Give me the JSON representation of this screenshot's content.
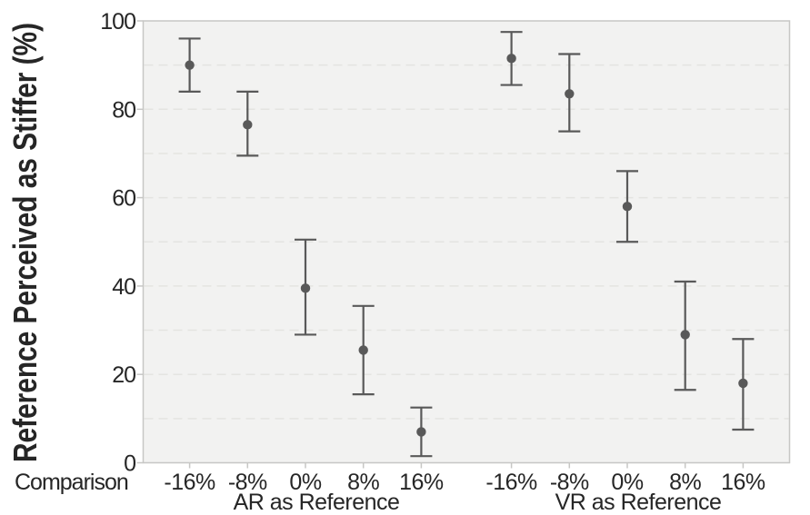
{
  "chart_data": {
    "type": "scatter",
    "subtype": "point-estimates-with-error-bars",
    "title": "",
    "ylabel": "Reference Perceived as Stiffer (%)",
    "xlabel": "Comparison",
    "ylim": [
      0,
      100
    ],
    "y_ticks": [
      0,
      20,
      40,
      60,
      80,
      100
    ],
    "gridline_step": 10,
    "grid": "dashed horizontal every 10, light gray",
    "legend": "none",
    "categories": [
      "-16%",
      "-8%",
      "0%",
      "8%",
      "16%"
    ],
    "series": [
      {
        "name": "AR as Reference",
        "means": [
          90,
          76.5,
          39.5,
          25.5,
          7
        ],
        "ci_low": [
          84,
          69.5,
          29,
          15.5,
          1.5
        ],
        "ci_high": [
          96,
          84,
          50.5,
          35.5,
          12.5
        ]
      },
      {
        "name": "VR as Reference",
        "means": [
          91.5,
          83.5,
          58,
          29,
          18
        ],
        "ci_low": [
          85.5,
          75,
          50,
          16.5,
          7.5
        ],
        "ci_high": [
          97.5,
          92.5,
          66,
          41,
          28
        ]
      }
    ],
    "colors": {
      "point": "#595959",
      "error_bar": "#595959",
      "plot_bg": "#f2f2f1",
      "gridline": "#e4e4e1",
      "frame": "#c7c7c5",
      "text": "#262626"
    }
  }
}
